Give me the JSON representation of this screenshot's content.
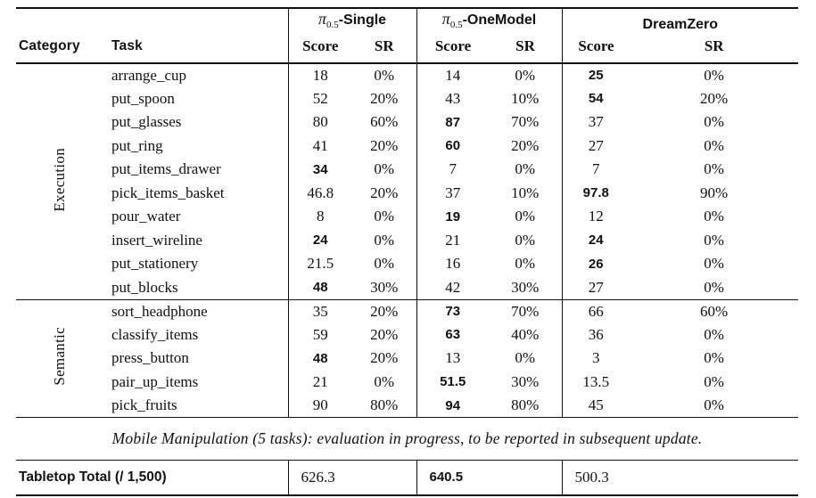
{
  "table": {
    "header": {
      "category": "Category",
      "task": "Task",
      "groups": [
        {
          "pi": "π",
          "sub": "0.5",
          "name": "-Single",
          "score": "Score",
          "sr": "SR"
        },
        {
          "pi": "π",
          "sub": "0.5",
          "name": "-OneModel",
          "score": "Score",
          "sr": "SR"
        },
        {
          "pi": "",
          "sub": "",
          "name": "DreamZero",
          "score": "Score",
          "sr": "SR"
        }
      ]
    },
    "sections": [
      {
        "category": "Execution",
        "rows": [
          {
            "task": "arrange_cup",
            "single_score": "18",
            "single_sr": "0%",
            "onemodel_score": "14",
            "onemodel_sr": "0%",
            "dz_score": "25",
            "dz_sr": "0%"
          },
          {
            "task": "put_spoon",
            "single_score": "52",
            "single_sr": "20%",
            "onemodel_score": "43",
            "onemodel_sr": "10%",
            "dz_score": "54",
            "dz_sr": "20%"
          },
          {
            "task": "put_glasses",
            "single_score": "80",
            "single_sr": "60%",
            "onemodel_score": "87",
            "onemodel_sr": "70%",
            "dz_score": "37",
            "dz_sr": "0%"
          },
          {
            "task": "put_ring",
            "single_score": "41",
            "single_sr": "20%",
            "onemodel_score": "60",
            "onemodel_sr": "20%",
            "dz_score": "27",
            "dz_sr": "0%"
          },
          {
            "task": "put_items_drawer",
            "single_score": "34",
            "single_sr": "0%",
            "onemodel_score": "7",
            "onemodel_sr": "0%",
            "dz_score": "7",
            "dz_sr": "0%"
          },
          {
            "task": "pick_items_basket",
            "single_score": "46.8",
            "single_sr": "20%",
            "onemodel_score": "37",
            "onemodel_sr": "10%",
            "dz_score": "97.8",
            "dz_sr": "90%"
          },
          {
            "task": "pour_water",
            "single_score": "8",
            "single_sr": "0%",
            "onemodel_score": "19",
            "onemodel_sr": "0%",
            "dz_score": "12",
            "dz_sr": "0%"
          },
          {
            "task": "insert_wireline",
            "single_score": "24",
            "single_sr": "0%",
            "onemodel_score": "21",
            "onemodel_sr": "0%",
            "dz_score": "24",
            "dz_sr": "0%"
          },
          {
            "task": "put_stationery",
            "single_score": "21.5",
            "single_sr": "0%",
            "onemodel_score": "16",
            "onemodel_sr": "0%",
            "dz_score": "26",
            "dz_sr": "0%"
          },
          {
            "task": "put_blocks",
            "single_score": "48",
            "single_sr": "30%",
            "onemodel_score": "42",
            "onemodel_sr": "30%",
            "dz_score": "27",
            "dz_sr": "0%"
          }
        ]
      },
      {
        "category": "Semantic",
        "rows": [
          {
            "task": "sort_headphone",
            "single_score": "35",
            "single_sr": "20%",
            "onemodel_score": "73",
            "onemodel_sr": "70%",
            "dz_score": "66",
            "dz_sr": "60%"
          },
          {
            "task": "classify_items",
            "single_score": "59",
            "single_sr": "20%",
            "onemodel_score": "63",
            "onemodel_sr": "40%",
            "dz_score": "36",
            "dz_sr": "0%"
          },
          {
            "task": "press_button",
            "single_score": "48",
            "single_sr": "20%",
            "onemodel_score": "13",
            "onemodel_sr": "0%",
            "dz_score": "3",
            "dz_sr": "0%"
          },
          {
            "task": "pair_up_items",
            "single_score": "21",
            "single_sr": "0%",
            "onemodel_score": "51.5",
            "onemodel_sr": "30%",
            "dz_score": "13.5",
            "dz_sr": "0%"
          },
          {
            "task": "pick_fruits",
            "single_score": "90",
            "single_sr": "80%",
            "onemodel_score": "94",
            "onemodel_sr": "80%",
            "dz_score": "45",
            "dz_sr": "0%"
          }
        ]
      }
    ],
    "note": "Mobile Manipulation (5 tasks): evaluation in progress, to be reported in subsequent update.",
    "total": {
      "label": "Tabletop Total (/ 1,500)",
      "single": "626.3",
      "onemodel": "640.5",
      "dreamzero": "500.3"
    }
  }
}
